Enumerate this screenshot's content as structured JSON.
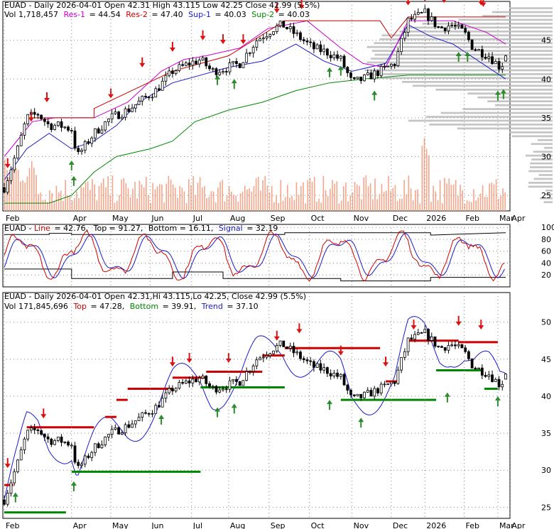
{
  "colors": {
    "up": "#2a8c2a",
    "down": "#dd1111",
    "blue_line": "#1a1acc",
    "magenta_line": "#cc00cc",
    "green_line": "#008800",
    "red_line": "#cc0000",
    "volume_bar": "#f4a58a",
    "volume_profile": "#bfbfbf",
    "grid": "#888888",
    "text_black": "#000000",
    "signal_line": "#1a1acc"
  },
  "panel1": {
    "title": "EUAD - Daily 2026-04-01 Open 42.31  High 43.115  Low 42.25  Close 42.99 (5.5%)",
    "line2": {
      "vol": "Vol 1,718,457",
      "res1_label": "Res-1",
      "res1_value": "= 44.54",
      "res2_label": "Res-2",
      "res2_value": "= 47.40",
      "sup1_label": "Sup-1",
      "sup1_value": "= 40.03",
      "sup2_label": "Sup-2",
      "sup2_value": "= 40.03"
    }
  },
  "panel2": {
    "title_prefix": "EUAD - ",
    "line_label": "Line",
    "line_value": "= 42.76,",
    "top_label": "Top = 91.27,",
    "bottom_label": "Bottom = 16.11,",
    "signal_label": "Signal",
    "signal_value": "= 32.19"
  },
  "panel3": {
    "title": "EUAD - Daily 2026-04-01 Open 42.31,Hi 43.115,Lo 42.25, Close 42.99 (5.5%)",
    "line2": {
      "vol": "Vol 171,845,696",
      "top_label": "Top",
      "top_value": "= 47.28,",
      "bottom_label": "Bottom",
      "bottom_value": "= 39.91,",
      "trend_label": "Trend",
      "trend_value": "= 37.10"
    }
  },
  "chart_data": [
    {
      "type": "candlestick",
      "title": "EUAD - Daily 2026-04-01 Open 42.31  High 43.115  Low 42.25  Close 42.99 (5.5%)",
      "x_labels": [
        "Feb",
        "Apr",
        "May",
        "Jun",
        "Jul",
        "Aug",
        "Sep",
        "Oct",
        "Nov",
        "Dec",
        "2026",
        "Feb",
        "Mar",
        "Apr"
      ],
      "y_ticks": [
        25,
        30,
        35,
        40,
        45
      ],
      "ylim": [
        23,
        50
      ],
      "last": {
        "date": "2026-04-01",
        "open": 42.31,
        "high": 43.115,
        "low": 42.25,
        "close": 42.99,
        "change_pct": 5.5
      },
      "resistance": [
        44.54,
        47.4
      ],
      "support": [
        40.03,
        40.03
      ],
      "grid": true
    },
    {
      "type": "line",
      "title": "EUAD - Line = 42.76, Top = 91.27, Bottom = 16.11, Signal = 32.19",
      "y_ticks": [
        20,
        40,
        60,
        80,
        100
      ],
      "ylim": [
        0,
        105
      ],
      "values": {
        "line": 42.76,
        "top": 91.27,
        "bottom": 16.11,
        "signal": 32.19
      },
      "grid": true
    },
    {
      "type": "candlestick",
      "title": "EUAD - Daily 2026-04-01 Open 42.31,Hi 43.115,Lo 42.25, Close 42.99 (5.5%)",
      "x_labels": [
        "Feb",
        "Apr",
        "May",
        "Jun",
        "Jul",
        "Aug",
        "Sep",
        "Oct",
        "Nov",
        "Dec",
        "2026",
        "Feb",
        "Mar",
        "Apr"
      ],
      "y_ticks": [
        25,
        30,
        35,
        40,
        45,
        50
      ],
      "ylim": [
        23.5,
        54
      ],
      "values": {
        "volume": "171,845,696",
        "top": 47.28,
        "bottom": 39.91,
        "trend": 37.1
      },
      "grid": true
    }
  ]
}
